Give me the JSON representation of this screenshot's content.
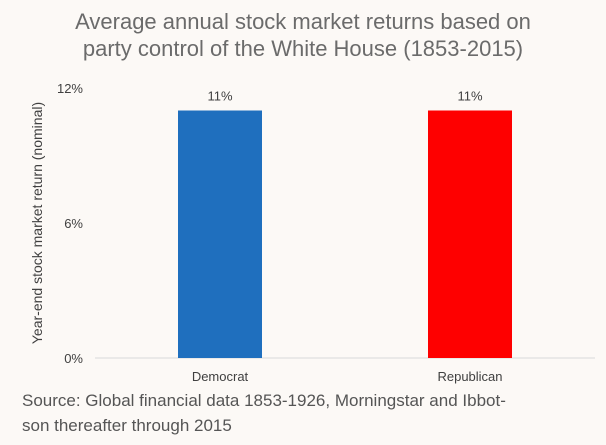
{
  "chart_data": {
    "type": "bar",
    "title": [
      "Average annual stock market returns based on",
      "party control of the White House (1853-2015)"
    ],
    "ylabel": "Year-end stock market return (nominal)",
    "xlabel": "",
    "categories": [
      "Democrat",
      "Republican"
    ],
    "values": [
      11,
      11
    ],
    "data_labels": [
      "11%",
      "11%"
    ],
    "bar_colors": [
      "#1f6fbe",
      "#fe0000"
    ],
    "ylim": [
      0,
      12
    ],
    "yticks": [
      0,
      6,
      12
    ],
    "ytick_labels": [
      "0%",
      "6%",
      "12%"
    ],
    "grid": false
  },
  "source_text": "Source: Global financial data 1853-1926, Morningstar and Ibbot-son thereafter through 2015",
  "source_lines": [
    "Source: Global financial data 1853-1926, Morningstar and Ibbot-",
    "son thereafter through 2015"
  ]
}
